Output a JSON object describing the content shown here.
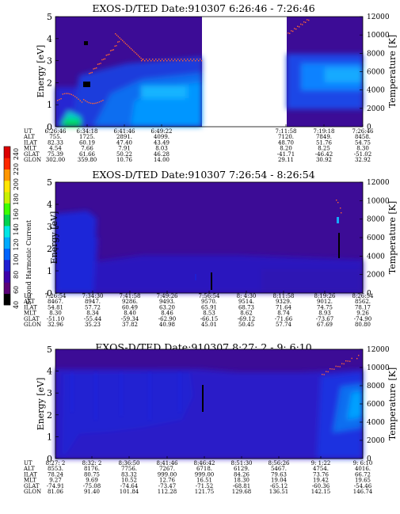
{
  "colorbar": {
    "label": "Second Harmonic Current",
    "ticks": [
      40,
      60,
      80,
      100,
      120,
      140,
      160,
      180,
      200,
      220,
      240
    ],
    "range": [
      40,
      250
    ],
    "colors": [
      "#000000",
      "#5a0078",
      "#3c00aa",
      "#1e1ed2",
      "#0064ff",
      "#00aaff",
      "#00e6e6",
      "#00d250",
      "#3cff00",
      "#c8f000",
      "#ffe600",
      "#ff9600",
      "#ff2800",
      "#dc0000"
    ]
  },
  "chart_data": [
    {
      "type": "heatmap",
      "title": "EXOS-D/TED   Date:910307   6:26:46 - 7:26:46",
      "ylabel": "Energy [eV]",
      "y2label": "Temperature [K]",
      "ylim": [
        0,
        5
      ],
      "y2lim": [
        0,
        12000
      ],
      "yticks": [
        0,
        1,
        2,
        3,
        4,
        5
      ],
      "y2ticks": [
        0,
        2000,
        4000,
        6000,
        8000,
        10000,
        12000
      ],
      "data_gap": [
        "6:56:54",
        "7:11:58"
      ],
      "ephemeris": {
        "labels": [
          "UT",
          "ALT",
          "ILAT",
          "MLT",
          "GLAT",
          "GLON"
        ],
        "columns": [
          [
            "6:26:46",
            "755.",
            "82.33",
            "4.54",
            "75.39",
            "302.00"
          ],
          [
            "6:34:18",
            "1725.",
            "60.19",
            "7.66",
            "61.66",
            "359.80"
          ],
          [
            "6:41:46",
            "2891.",
            "47.40",
            "7.91",
            "50.22",
            "10.76"
          ],
          [
            "6:49:22",
            "4099.",
            "43.49",
            "8.03",
            "46.28",
            "14.00"
          ],
          [
            "7:11:58",
            "7120.",
            "48.70",
            "8.20",
            "-41.71",
            "29.11"
          ],
          [
            "7:19:18",
            "7849.",
            "51.76",
            "8.25",
            "-46.42",
            "30.92"
          ],
          [
            "7:26:46",
            "8458.",
            "54.75",
            "8.30",
            "-51.02",
            "32.92"
          ]
        ]
      }
    },
    {
      "type": "heatmap",
      "title": "EXOS-D/TED   Date:910307   7:26:54 - 8:26:54",
      "ylabel": "Energy [eV]",
      "y2label": "Temperature [K]",
      "ylim": [
        0,
        5
      ],
      "y2lim": [
        0,
        12000
      ],
      "yticks": [
        0,
        1,
        2,
        3,
        4,
        5
      ],
      "y2ticks": [
        0,
        2000,
        4000,
        6000,
        8000,
        10000,
        12000
      ],
      "ephemeris": {
        "labels": [
          "UT",
          "ALT",
          "ILAT",
          "MLT",
          "GLAT",
          "GLON"
        ],
        "columns": [
          [
            "7:26:54",
            "8467.",
            "54.81",
            "8.30",
            "-51.10",
            "32.96"
          ],
          [
            "7:34:30",
            "8947.",
            "57.72",
            "8.34",
            "-55.44",
            "35.23"
          ],
          [
            "7:41:58",
            "9286.",
            "60.49",
            "8.40",
            "-59.34",
            "37.82"
          ],
          [
            "7:49:26",
            "9493.",
            "63.20",
            "8.46",
            "-62.90",
            "40.98"
          ],
          [
            "7:56:54",
            "9570.",
            "65.91",
            "8.53",
            "-66.15",
            "45.01"
          ],
          [
            "8: 4:30",
            "9514.",
            "68.73",
            "8.62",
            "-69.12",
            "50.45"
          ],
          [
            "8:11:58",
            "9329.",
            "71.64",
            "8.74",
            "-71.66",
            "57.74"
          ],
          [
            "8:19:26",
            "9012.",
            "74.75",
            "8.93",
            "-73.67",
            "67.69"
          ],
          [
            "8:26:54",
            "8562.",
            "78.17",
            "9.26",
            "-74.90",
            "80.80"
          ]
        ]
      }
    },
    {
      "type": "heatmap",
      "title": "EXOS-D/TED   Date:910307   8:27: 2 - 9: 6:10",
      "ylabel": "Energy [eV]",
      "y2label": "Temperature [K]",
      "ylim": [
        0,
        5
      ],
      "y2lim": [
        0,
        12000
      ],
      "yticks": [
        0,
        1,
        2,
        3,
        4,
        5
      ],
      "y2ticks": [
        0,
        2000,
        4000,
        6000,
        8000,
        10000,
        12000
      ],
      "ephemeris": {
        "labels": [
          "UT",
          "ALT",
          "ILAT",
          "MLT",
          "GLAT",
          "GLON"
        ],
        "columns": [
          [
            "8:27: 2",
            "8553.",
            "78.24",
            "9.27",
            "-74.91",
            "81.06"
          ],
          [
            "8:32: 2",
            "8176.",
            "80.75",
            "9.69",
            "-75.08",
            "91.40"
          ],
          [
            "8:36:50",
            "7756.",
            "83.32",
            "10.52",
            "-74.64",
            "101.84"
          ],
          [
            "8:41:46",
            "7267.",
            "999.00",
            "12.76",
            "-73.47",
            "112.28"
          ],
          [
            "8:46:42",
            "6718.",
            "999.00",
            "16.51",
            "-71.52",
            "121.75"
          ],
          [
            "8:51:30",
            "6129.",
            "84.26",
            "18.30",
            "-68.81",
            "129.68"
          ],
          [
            "8:56:26",
            "5467.",
            "79.63",
            "19.04",
            "-65.12",
            "136.51"
          ],
          [
            "9: 1:22",
            "4754.",
            "73.76",
            "19.42",
            "-60.36",
            "142.15"
          ],
          [
            "9: 6:10",
            "4016.",
            "66.72",
            "19.65",
            "-54.46",
            "146.74"
          ]
        ]
      }
    }
  ]
}
